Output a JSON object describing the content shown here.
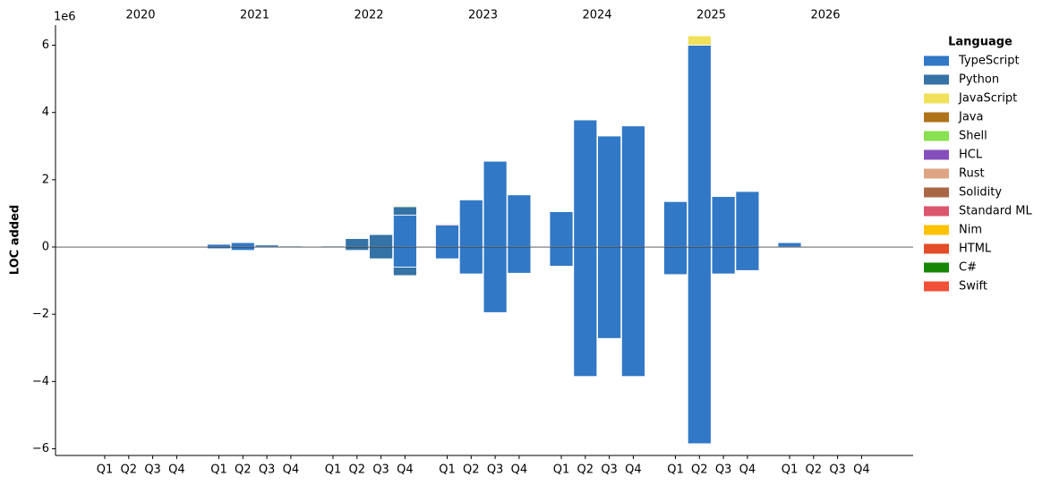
{
  "chart_data": {
    "type": "bar",
    "stacked": true,
    "ylabel": "LOC added",
    "y_offset_label": "1e6",
    "legend_title": "Language",
    "legend_position": "right",
    "years": [
      "2020",
      "2021",
      "2022",
      "2023",
      "2024",
      "2025",
      "2026"
    ],
    "categories": [
      "Q1",
      "Q2",
      "Q3",
      "Q4",
      "Q1",
      "Q2",
      "Q3",
      "Q4",
      "Q1",
      "Q2",
      "Q3",
      "Q4",
      "Q1",
      "Q2",
      "Q3",
      "Q4",
      "Q1",
      "Q2",
      "Q3",
      "Q4",
      "Q1",
      "Q2",
      "Q3",
      "Q4",
      "Q1",
      "Q2",
      "Q3",
      "Q4"
    ],
    "ylim": [
      -6.2,
      6.6
    ],
    "yticks": [
      {
        "value": -6,
        "label": "−6"
      },
      {
        "value": -4,
        "label": "−4"
      },
      {
        "value": -2,
        "label": "−2"
      },
      0,
      2,
      4,
      6
    ],
    "series": [
      {
        "name": "TypeScript",
        "color": "#3178c6",
        "values": [
          null,
          null,
          null,
          null,
          0.08,
          0.13,
          0.06,
          0.03,
          0.03,
          null,
          null,
          0.95,
          0.65,
          1.4,
          2.55,
          1.55,
          1.05,
          3.78,
          3.3,
          3.6,
          1.35,
          6.0,
          1.5,
          1.65,
          0.13,
          null,
          null,
          null
        ],
        "removed": [
          null,
          null,
          null,
          null,
          -0.05,
          -0.1,
          -0.02,
          -0.01,
          -0.02,
          null,
          null,
          -0.6,
          -0.35,
          -0.8,
          -1.95,
          -0.78,
          -0.57,
          -3.85,
          -2.72,
          -3.85,
          -0.82,
          -5.85,
          -0.8,
          -0.7,
          -0.02,
          null,
          null,
          null
        ]
      },
      {
        "name": "Python",
        "color": "#3572a5",
        "values": [
          null,
          null,
          null,
          null,
          null,
          null,
          null,
          null,
          null,
          0.25,
          0.37,
          0.25,
          null,
          null,
          null,
          null,
          null,
          null,
          null,
          null,
          null,
          null,
          null,
          null,
          null,
          null,
          null,
          null
        ],
        "removed": [
          null,
          null,
          null,
          null,
          null,
          null,
          null,
          null,
          null,
          -0.1,
          -0.35,
          -0.25,
          null,
          null,
          null,
          null,
          null,
          null,
          null,
          null,
          null,
          null,
          null,
          null,
          null,
          null,
          null,
          null
        ]
      },
      {
        "name": "JavaScript",
        "color": "#f1e05a",
        "values": [
          null,
          null,
          0.02,
          null,
          null,
          null,
          null,
          null,
          null,
          null,
          null,
          0.03,
          null,
          null,
          null,
          null,
          null,
          0.02,
          null,
          null,
          null,
          0.28,
          null,
          null,
          null,
          null,
          null,
          null
        ]
      },
      {
        "name": "Java",
        "color": "#b07219",
        "values": [
          null,
          null,
          null,
          null,
          null,
          null,
          null,
          null,
          null,
          null,
          0.02,
          null,
          null,
          null,
          null,
          null,
          null,
          0.02,
          null,
          null,
          null,
          null,
          null,
          null,
          null,
          null,
          null,
          null
        ]
      },
      {
        "name": "Shell",
        "color": "#89e051",
        "values": [
          null,
          null,
          null,
          null,
          null,
          null,
          null,
          null,
          null,
          null,
          null,
          null,
          null,
          null,
          null,
          null,
          null,
          null,
          null,
          null,
          null,
          null,
          null,
          null,
          null,
          null,
          null,
          null
        ]
      },
      {
        "name": "HCL",
        "color": "#844fba",
        "values": [
          null,
          null,
          null,
          null,
          null,
          null,
          null,
          null,
          null,
          null,
          null,
          null,
          null,
          null,
          null,
          null,
          null,
          null,
          null,
          null,
          null,
          null,
          null,
          null,
          null,
          null,
          null,
          null
        ]
      },
      {
        "name": "Rust",
        "color": "#dea584",
        "values": [
          null,
          null,
          null,
          null,
          null,
          null,
          null,
          null,
          null,
          null,
          null,
          null,
          null,
          null,
          null,
          null,
          null,
          null,
          null,
          null,
          null,
          null,
          null,
          null,
          null,
          null,
          null,
          null
        ]
      },
      {
        "name": "Solidity",
        "color": "#aa6746",
        "values": [
          null,
          null,
          null,
          null,
          null,
          null,
          null,
          null,
          null,
          null,
          null,
          null,
          null,
          null,
          null,
          null,
          null,
          null,
          null,
          null,
          null,
          null,
          null,
          null,
          null,
          null,
          null,
          null
        ]
      },
      {
        "name": "Standard ML",
        "color": "#dc566d",
        "values": [
          null,
          null,
          null,
          null,
          null,
          null,
          null,
          null,
          null,
          null,
          null,
          null,
          0.03,
          null,
          null,
          null,
          null,
          null,
          null,
          null,
          null,
          null,
          null,
          null,
          null,
          null,
          null,
          null
        ]
      },
      {
        "name": "Nim",
        "color": "#ffc200",
        "values": [
          null,
          null,
          null,
          null,
          null,
          null,
          null,
          null,
          null,
          null,
          null,
          null,
          null,
          null,
          null,
          null,
          null,
          null,
          null,
          null,
          null,
          null,
          null,
          null,
          null,
          null,
          null,
          null
        ]
      },
      {
        "name": "HTML",
        "color": "#e34c26",
        "values": [
          null,
          null,
          null,
          null,
          null,
          null,
          null,
          null,
          null,
          null,
          null,
          null,
          null,
          null,
          null,
          null,
          null,
          null,
          null,
          null,
          null,
          null,
          null,
          null,
          null,
          null,
          null,
          null
        ]
      },
      {
        "name": "C#",
        "color": "#178600",
        "values": [
          null,
          null,
          null,
          null,
          null,
          null,
          null,
          null,
          null,
          null,
          null,
          null,
          null,
          null,
          null,
          null,
          null,
          null,
          null,
          null,
          null,
          null,
          null,
          null,
          null,
          null,
          null,
          null
        ]
      },
      {
        "name": "Swift",
        "color": "#f05138",
        "values": [
          null,
          null,
          null,
          null,
          null,
          null,
          null,
          null,
          null,
          null,
          null,
          null,
          null,
          null,
          null,
          null,
          null,
          null,
          null,
          null,
          null,
          null,
          null,
          null,
          null,
          null,
          null,
          null
        ]
      }
    ]
  }
}
